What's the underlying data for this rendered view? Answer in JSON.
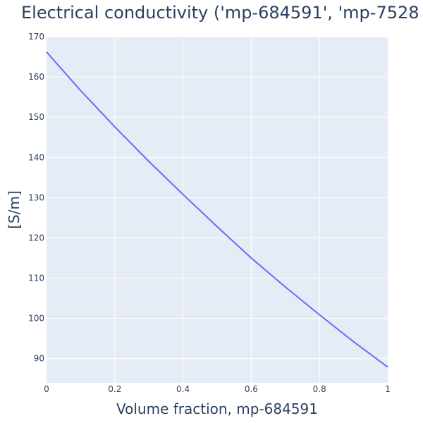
{
  "chart_data": {
    "type": "line",
    "title": "Electrical conductivity ('mp-684591', 'mp-7528",
    "xlabel": "Volume fraction, mp-684591",
    "ylabel": "[S/m]",
    "xlim": [
      0,
      1
    ],
    "ylim": [
      84,
      170
    ],
    "x_ticks": [
      0,
      0.2,
      0.4,
      0.6,
      0.8,
      1
    ],
    "x_tick_labels": [
      "0",
      "0.2",
      "0.4",
      "0.6",
      "0.8",
      "1"
    ],
    "y_ticks": [
      90,
      100,
      110,
      120,
      130,
      140,
      150,
      160,
      170
    ],
    "y_tick_labels": [
      "90",
      "100",
      "110",
      "120",
      "130",
      "140",
      "150",
      "160",
      "170"
    ],
    "grid": true,
    "colors": {
      "line": "#636efa",
      "plot_bg": "#e5ecf6",
      "text": "#2a3f5f"
    },
    "series": [
      {
        "x": [
          0,
          0.1,
          0.2,
          0.3,
          0.4,
          0.5,
          0.6,
          0.7,
          0.8,
          0.9,
          1.0
        ],
        "y": [
          166.2,
          156.6,
          147.6,
          139.0,
          130.8,
          122.8,
          115.0,
          107.8,
          100.9,
          94.2,
          87.9
        ]
      }
    ]
  }
}
